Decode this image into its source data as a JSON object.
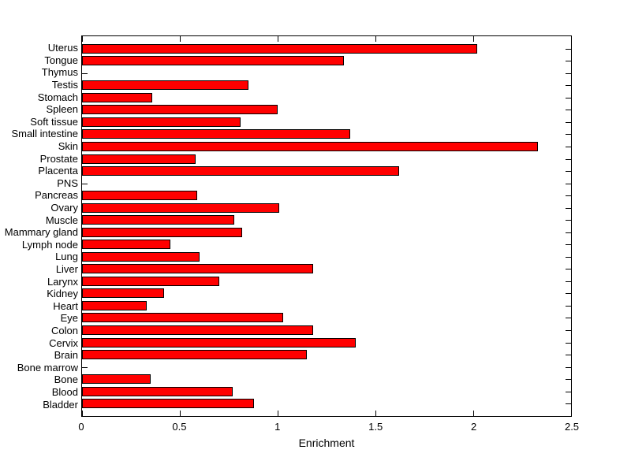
{
  "figure": {
    "background_color": "#ffffff",
    "axis_color": "#000000",
    "text_color": "#000000"
  },
  "chart_data": {
    "type": "bar",
    "orientation": "horizontal",
    "title": "",
    "xlabel": "Enrichment",
    "ylabel": "",
    "xlim": [
      0,
      2.5
    ],
    "xticks": [
      0,
      0.5,
      1,
      1.5,
      2,
      2.5
    ],
    "xtick_labels": [
      "0",
      "0.5",
      "1",
      "1.5",
      "2",
      "2.5"
    ],
    "grid": false,
    "bar_color": "#ff0000",
    "bar_edge_color": "#000000",
    "categories": [
      "Uterus",
      "Tongue",
      "Thymus",
      "Testis",
      "Stomach",
      "Spleen",
      "Soft tissue",
      "Small intestine",
      "Skin",
      "Prostate",
      "Placenta",
      "PNS",
      "Pancreas",
      "Ovary",
      "Muscle",
      "Mammary gland",
      "Lymph node",
      "Lung",
      "Liver",
      "Larynx",
      "Kidney",
      "Heart",
      "Eye",
      "Colon",
      "Cervix",
      "Brain",
      "Bone marrow",
      "Bone",
      "Blood",
      "Bladder"
    ],
    "values": [
      2.02,
      1.34,
      0,
      0.85,
      0.36,
      1.0,
      0.81,
      1.37,
      2.33,
      0.58,
      1.62,
      0,
      0.59,
      1.01,
      0.78,
      0.82,
      0.45,
      0.6,
      1.18,
      0.7,
      0.42,
      0.33,
      1.03,
      1.18,
      1.4,
      1.15,
      0,
      0.35,
      0.77,
      0.88
    ]
  }
}
